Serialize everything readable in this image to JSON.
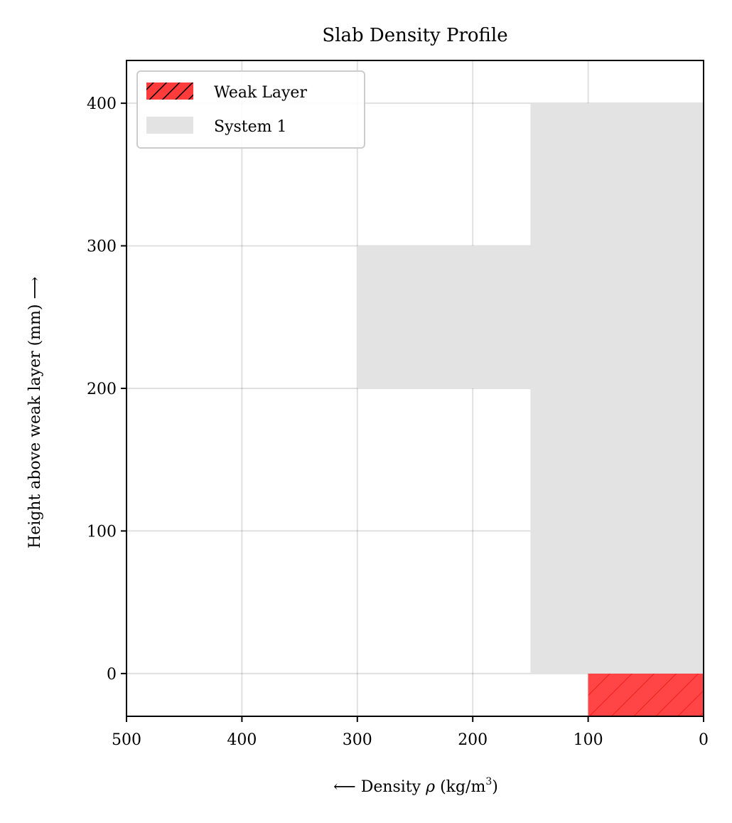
{
  "chart_data": {
    "type": "bar",
    "orientation": "horizontal-step",
    "title": "Slab Density Profile",
    "xlabel": "⟵ Density ρ (kg/m³)",
    "xlabel_parts": {
      "arrow": "⟵",
      "text": "Density",
      "symbol": "ρ",
      "unit_open": "(kg/m",
      "unit_exp": "3",
      "unit_close": ")"
    },
    "ylabel": "Height above weak layer (mm) ⟶",
    "xlim": [
      500,
      0
    ],
    "ylim": [
      -30,
      430
    ],
    "x_reversed": true,
    "xticks": [
      500,
      400,
      300,
      200,
      100,
      0
    ],
    "yticks": [
      0,
      100,
      200,
      300,
      400
    ],
    "grid": true,
    "legend_position": "top-left",
    "series": [
      {
        "name": "Weak Layer",
        "color": "#ff3b3b",
        "hatch": "diagonal",
        "layers": [
          {
            "density": 100,
            "bottom": -30,
            "top": 0
          }
        ]
      },
      {
        "name": "System 1",
        "color": "#e3e3e3",
        "layers": [
          {
            "density": 150,
            "bottom": 0,
            "top": 200
          },
          {
            "density": 300,
            "bottom": 200,
            "top": 300
          },
          {
            "density": 150,
            "bottom": 300,
            "top": 400
          }
        ]
      }
    ]
  }
}
